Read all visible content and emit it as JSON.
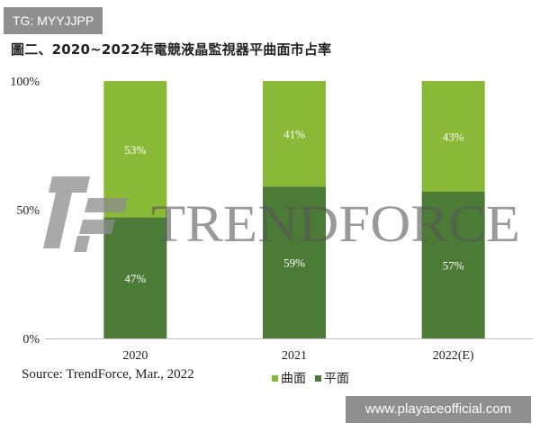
{
  "badge": {
    "tg": "TG: MYYJJPP",
    "site": "www.playaceofficial.com"
  },
  "chart_data": {
    "type": "bar",
    "stacked": true,
    "title": "圖二、2020~2022年電競液晶監視器平曲面市占率",
    "categories": [
      "2020",
      "2021",
      "2022(E)"
    ],
    "series": [
      {
        "name": "平面",
        "values": [
          47,
          59,
          57
        ],
        "color": "#4c7a37"
      },
      {
        "name": "曲面",
        "values": [
          53,
          41,
          43
        ],
        "color": "#8ab837"
      }
    ],
    "data_labels": {
      "平面": [
        "47%",
        "59%",
        "57%"
      ],
      "曲面": [
        "53%",
        "41%",
        "43%"
      ]
    },
    "y_ticks": [
      "0%",
      "50%",
      "100%"
    ],
    "ylim": [
      0,
      100
    ],
    "grid": false,
    "legend": "bottom"
  },
  "watermark": {
    "text": "TRENDFORCE"
  },
  "source": "Source: TrendForce, Mar., 2022",
  "legend": {
    "curved": "曲面",
    "flat": "平面"
  }
}
